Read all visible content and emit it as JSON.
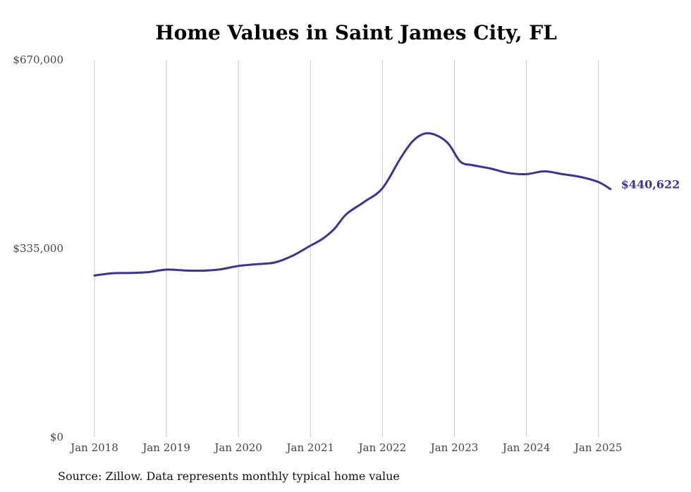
{
  "chart_data": {
    "type": "line",
    "title": "Home Values in Saint James City, FL",
    "xlabel": "",
    "ylabel": "",
    "ylim": [
      0,
      670000
    ],
    "y_ticks": [
      {
        "value": 0,
        "label": "$0"
      },
      {
        "value": 335000,
        "label": "$335,000"
      },
      {
        "value": 670000,
        "label": "$670,000"
      }
    ],
    "x_ticks": [
      {
        "value": "2018-01",
        "label": "Jan 2018"
      },
      {
        "value": "2019-01",
        "label": "Jan 2019"
      },
      {
        "value": "2020-01",
        "label": "Jan 2020"
      },
      {
        "value": "2021-01",
        "label": "Jan 2021"
      },
      {
        "value": "2022-01",
        "label": "Jan 2022"
      },
      {
        "value": "2023-01",
        "label": "Jan 2023"
      },
      {
        "value": "2024-01",
        "label": "Jan 2024"
      },
      {
        "value": "2025-01",
        "label": "Jan 2025"
      }
    ],
    "grid": {
      "vertical": true,
      "horizontal": false
    },
    "line_color": "#3b3497",
    "end_label": "$440,622",
    "series": [
      {
        "x": [
          "2018-01",
          "2018-04",
          "2018-07",
          "2018-10",
          "2019-01",
          "2019-04",
          "2019-07",
          "2019-10",
          "2020-01",
          "2020-04",
          "2020-07",
          "2020-10",
          "2021-01",
          "2021-03",
          "2021-05",
          "2021-07",
          "2021-10",
          "2022-01",
          "2022-04",
          "2022-06",
          "2022-08",
          "2022-10",
          "2022-12",
          "2023-02",
          "2023-04",
          "2023-07",
          "2023-10",
          "2024-01",
          "2024-04",
          "2024-07",
          "2024-10",
          "2025-01",
          "2025-03"
        ],
        "y": [
          287000,
          291000,
          291500,
          293000,
          297500,
          296000,
          295500,
          298000,
          304000,
          307000,
          310000,
          322000,
          340000,
          352000,
          370000,
          396000,
          418000,
          442000,
          495000,
          525000,
          539000,
          536000,
          521000,
          489000,
          483000,
          477000,
          469000,
          467000,
          472000,
          467000,
          462000,
          453000,
          440622
        ]
      }
    ]
  },
  "source_note": "Source: Zillow. Data represents monthly typical home value"
}
